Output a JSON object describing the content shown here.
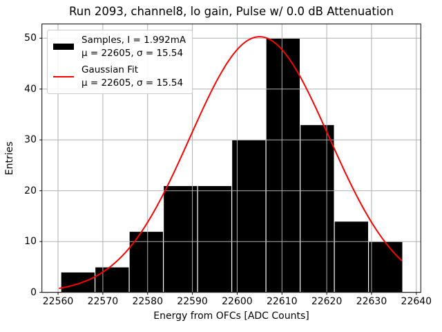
{
  "chart_data": {
    "type": "bar",
    "subtype": "histogram",
    "title": "Run 2093, channel8, lo gain, Pulse w/ 0.0 dB Attenuation",
    "xlabel": "Energy from OFCs [ADC Counts]",
    "ylabel": "Entries",
    "xlim": [
      22556.4,
      22641.0
    ],
    "ylim": [
      0,
      52.8
    ],
    "xticks": [
      22560,
      22570,
      22580,
      22590,
      22600,
      22610,
      22620,
      22630,
      22640
    ],
    "yticks": [
      0,
      10,
      20,
      30,
      40,
      50
    ],
    "grid": true,
    "grid_color": "#b0b0b0",
    "bar_color": "#000000",
    "bar_edge_color": "#ffffff",
    "bins": {
      "start": 22560.62,
      "width": 7.634,
      "counts": [
        4,
        5,
        12,
        21,
        21,
        30,
        50,
        33,
        14,
        10
      ]
    },
    "total_entries": 200,
    "gaussian_fit": {
      "mu": 22605,
      "sigma": 15.54,
      "amplitude": 50.3,
      "color": "#ff0000",
      "x_min": 22560.3,
      "x_max": 22637.0
    },
    "legend_position": "upper left"
  },
  "legend": {
    "entries": [
      {
        "swatch": "black-patch",
        "line1": "Samples, I = 1.992mA",
        "line2": "μ = 22605, σ = 15.54"
      },
      {
        "swatch": "red-line",
        "line1": "Gaussian Fit",
        "line2": "μ = 22605, σ = 15.54"
      }
    ]
  }
}
